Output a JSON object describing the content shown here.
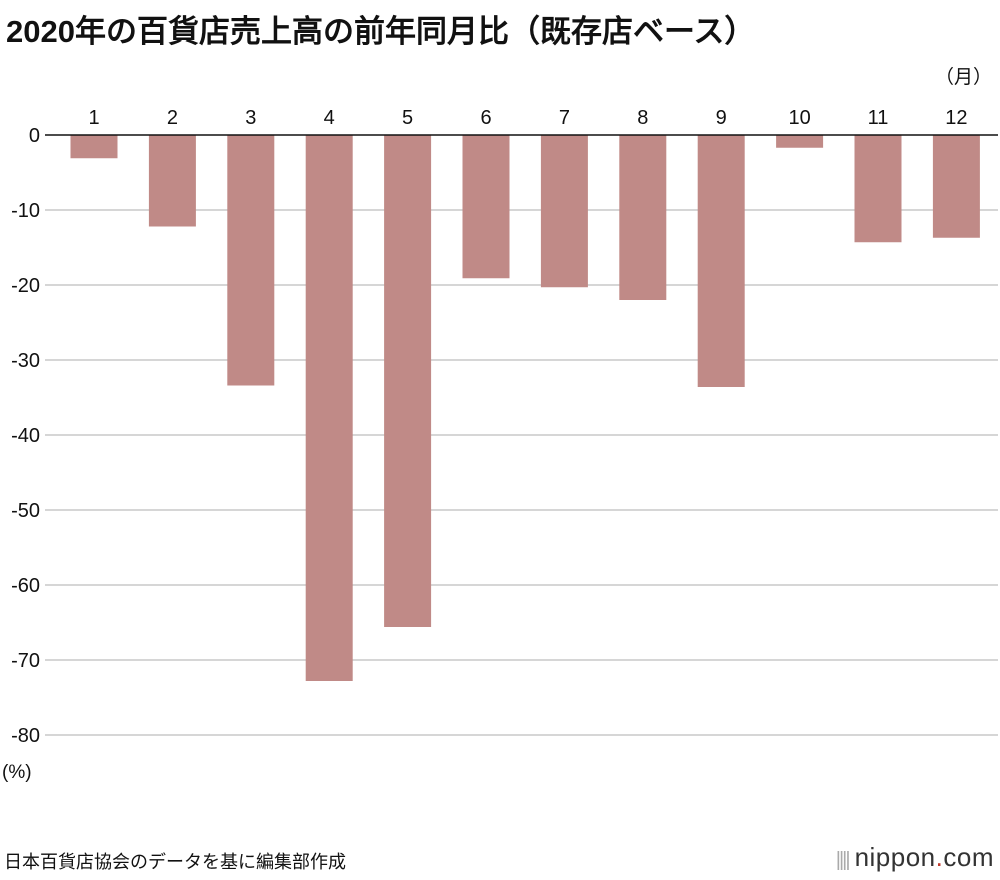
{
  "chart_data": {
    "type": "bar",
    "title": "2020年の百貨店売上高の前年同月比（既存店ベース）",
    "xlabel": "（月）",
    "ylabel": "(%)",
    "categories": [
      "1",
      "2",
      "3",
      "4",
      "5",
      "6",
      "7",
      "8",
      "9",
      "10",
      "11",
      "12"
    ],
    "values": [
      -3.1,
      -12.2,
      -33.4,
      -72.8,
      -65.6,
      -19.1,
      -20.3,
      -22.0,
      -33.6,
      -1.7,
      -14.3,
      -13.7
    ],
    "ylim": [
      -80,
      0
    ],
    "yticks": [
      "0",
      "-10",
      "-20",
      "-30",
      "-40",
      "-50",
      "-60",
      "-70",
      "-80"
    ],
    "grid": true,
    "bar_color": "#c08a87",
    "source": "日本百貨店協会のデータを基に編集部作成"
  },
  "logo": {
    "name": "nippon",
    "dot": ".",
    "tld": "com"
  }
}
